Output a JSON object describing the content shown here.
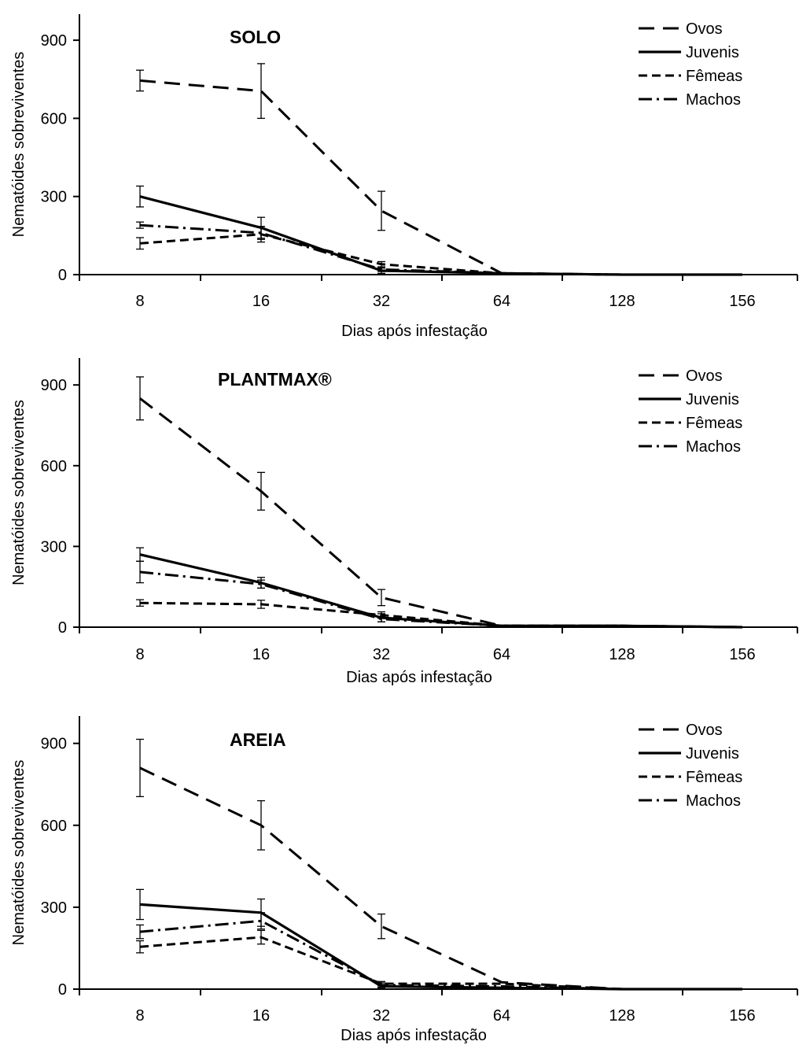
{
  "chart_data": [
    {
      "type": "line",
      "title": "SOLO",
      "xlabel": "Dias após infestação",
      "ylabel": "Nematóides sobreviventes",
      "x": [
        "8",
        "16",
        "32",
        "64",
        "128",
        "156"
      ],
      "ylim": [
        0,
        1000
      ],
      "yticks": [
        "0",
        "300",
        "600",
        "900"
      ],
      "legend_position": "top-right",
      "series": [
        {
          "name": "Ovos",
          "style": "long-dash",
          "values": [
            745,
            705,
            245,
            5,
            0,
            0
          ],
          "errors": [
            40,
            105,
            75,
            null,
            null,
            null
          ]
        },
        {
          "name": "Juvenis",
          "style": "solid",
          "values": [
            300,
            180,
            15,
            5,
            0,
            0
          ],
          "errors": [
            40,
            40,
            10,
            null,
            null,
            null
          ]
        },
        {
          "name": "Fêmeas",
          "style": "short-dash",
          "values": [
            120,
            155,
            40,
            5,
            0,
            0
          ],
          "errors": [
            22,
            30,
            10,
            null,
            null,
            null
          ]
        },
        {
          "name": "Machos",
          "style": "dash-dot",
          "values": [
            190,
            160,
            20,
            5,
            0,
            0
          ],
          "errors": [
            12,
            25,
            8,
            null,
            null,
            null
          ]
        }
      ]
    },
    {
      "type": "line",
      "title": "PLANTMAX®",
      "xlabel": "Dias após infestação",
      "ylabel": "Nematóides sobreviventes",
      "x": [
        "8",
        "16",
        "32",
        "64",
        "128",
        "156"
      ],
      "ylim": [
        0,
        1000
      ],
      "yticks": [
        "0",
        "300",
        "600",
        "900"
      ],
      "legend_position": "top-right",
      "series": [
        {
          "name": "Ovos",
          "style": "long-dash",
          "values": [
            850,
            505,
            110,
            5,
            5,
            0
          ],
          "errors": [
            80,
            70,
            30,
            null,
            null,
            null
          ]
        },
        {
          "name": "Juvenis",
          "style": "solid",
          "values": [
            270,
            165,
            35,
            5,
            5,
            0
          ],
          "errors": [
            25,
            20,
            15,
            null,
            null,
            null
          ]
        },
        {
          "name": "Fêmeas",
          "style": "short-dash",
          "values": [
            90,
            85,
            45,
            5,
            5,
            0
          ],
          "errors": [
            12,
            15,
            12,
            null,
            null,
            null
          ]
        },
        {
          "name": "Machos",
          "style": "dash-dot",
          "values": [
            205,
            160,
            30,
            5,
            5,
            0
          ],
          "errors": [
            40,
            15,
            10,
            null,
            null,
            null
          ]
        }
      ]
    },
    {
      "type": "line",
      "title": "AREIA",
      "xlabel": "Dias após infestação",
      "ylabel": "Nematóides sobreviventes",
      "x": [
        "8",
        "16",
        "32",
        "64",
        "128",
        "156"
      ],
      "ylim": [
        0,
        1000
      ],
      "yticks": [
        "0",
        "300",
        "600",
        "900"
      ],
      "legend_position": "top-right",
      "series": [
        {
          "name": "Ovos",
          "style": "long-dash",
          "values": [
            810,
            600,
            230,
            25,
            0,
            0
          ],
          "errors": [
            105,
            90,
            45,
            null,
            null,
            null
          ]
        },
        {
          "name": "Juvenis",
          "style": "solid",
          "values": [
            310,
            280,
            10,
            5,
            0,
            0
          ],
          "errors": [
            55,
            50,
            5,
            null,
            null,
            null
          ]
        },
        {
          "name": "Fêmeas",
          "style": "short-dash",
          "values": [
            155,
            190,
            20,
            20,
            0,
            0
          ],
          "errors": [
            22,
            25,
            8,
            null,
            null,
            null
          ]
        },
        {
          "name": "Machos",
          "style": "dash-dot",
          "values": [
            210,
            250,
            15,
            10,
            0,
            0
          ],
          "errors": [
            25,
            30,
            8,
            null,
            null,
            null
          ]
        }
      ]
    }
  ]
}
